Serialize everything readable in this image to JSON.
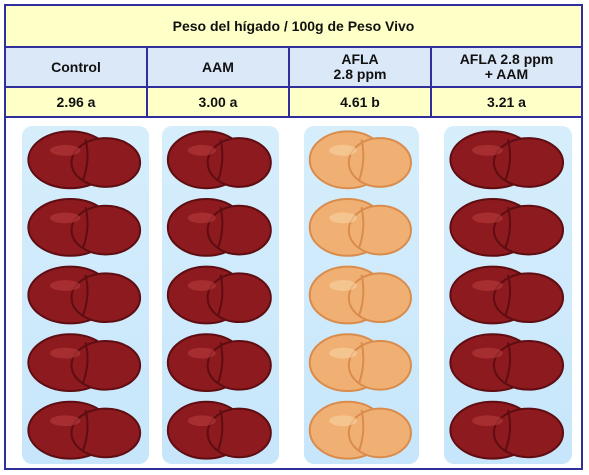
{
  "title": "Peso del hígado / 100g de Peso Vivo",
  "columns": [
    {
      "label_lines": [
        "Control"
      ],
      "value": "2.96 a",
      "liver_color": "dark-red"
    },
    {
      "label_lines": [
        "AAM"
      ],
      "value": "3.00 a",
      "liver_color": "dark-red"
    },
    {
      "label_lines": [
        "AFLA",
        "2.8 ppm"
      ],
      "value": "4.61 b",
      "liver_color": "pale-orange"
    },
    {
      "label_lines": [
        "AFLA 2.8 ppm",
        "+ AAM"
      ],
      "value": "3.21 a",
      "liver_color": "dark-red"
    }
  ],
  "colors": {
    "border": "#2f2f9c",
    "title_bg": "#ffffc8",
    "header_bg": "#dbe8f7",
    "value_bg": "#ffffc8",
    "panel_bg": "#d6eefc",
    "liver_dark": "#8c1a1e",
    "liver_pale": "#f0b074"
  }
}
